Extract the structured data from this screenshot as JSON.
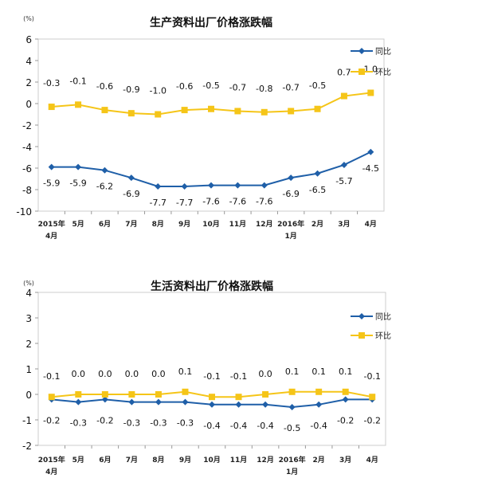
{
  "colors": {
    "yoy": "#1f5fa8",
    "mom": "#f5c518",
    "frame": "#cccccc"
  },
  "chart_data": [
    {
      "type": "line",
      "title": "生产资料出厂价格涨跌幅",
      "unit": "(%)",
      "categories": [
        [
          "2015年",
          "4月"
        ],
        [
          "5月"
        ],
        [
          "6月"
        ],
        [
          "7月"
        ],
        [
          "8月"
        ],
        [
          "9月"
        ],
        [
          "10月"
        ],
        [
          "11月"
        ],
        [
          "12月"
        ],
        [
          "2016年",
          "1月"
        ],
        [
          "2月"
        ],
        [
          "3月"
        ],
        [
          "4月"
        ]
      ],
      "ylim": [
        -10,
        6
      ],
      "yticks": [
        6,
        4,
        2,
        0,
        -2,
        -4,
        -6,
        -8,
        -10
      ],
      "legend_position": "top-right",
      "series": [
        {
          "name": "同比",
          "key": "yoy",
          "marker": "diamond",
          "values": [
            -5.9,
            -5.9,
            -6.2,
            -6.9,
            -7.7,
            -7.7,
            -7.6,
            -7.6,
            -7.6,
            -6.9,
            -6.5,
            -5.7,
            -4.5
          ]
        },
        {
          "name": "环比",
          "key": "mom",
          "marker": "square",
          "values": [
            -0.3,
            -0.1,
            -0.6,
            -0.9,
            -1.0,
            -0.6,
            -0.5,
            -0.7,
            -0.8,
            -0.7,
            -0.5,
            0.7,
            1.0
          ]
        }
      ]
    },
    {
      "type": "line",
      "title": "生活资料出厂价格涨跌幅",
      "unit": "(%)",
      "categories": [
        [
          "2015年",
          "4月"
        ],
        [
          "5月"
        ],
        [
          "6月"
        ],
        [
          "7月"
        ],
        [
          "8月"
        ],
        [
          "9月"
        ],
        [
          "10月"
        ],
        [
          "11月"
        ],
        [
          "12月"
        ],
        [
          "2016年",
          "1月"
        ],
        [
          "2月"
        ],
        [
          "3月"
        ],
        [
          "4月"
        ]
      ],
      "ylim": [
        -2,
        4
      ],
      "yticks": [
        4,
        3,
        2,
        1,
        0,
        -1,
        -2
      ],
      "legend_position": "top-right",
      "series": [
        {
          "name": "同比",
          "key": "yoy",
          "marker": "diamond",
          "values": [
            -0.2,
            -0.3,
            -0.2,
            -0.3,
            -0.3,
            -0.3,
            -0.4,
            -0.4,
            -0.4,
            -0.5,
            -0.4,
            -0.2,
            -0.2
          ]
        },
        {
          "name": "环比",
          "key": "mom",
          "marker": "square",
          "values": [
            -0.1,
            0.0,
            0.0,
            0.0,
            0.0,
            0.1,
            -0.1,
            -0.1,
            0.0,
            0.1,
            0.1,
            0.1,
            -0.1
          ]
        }
      ]
    }
  ]
}
